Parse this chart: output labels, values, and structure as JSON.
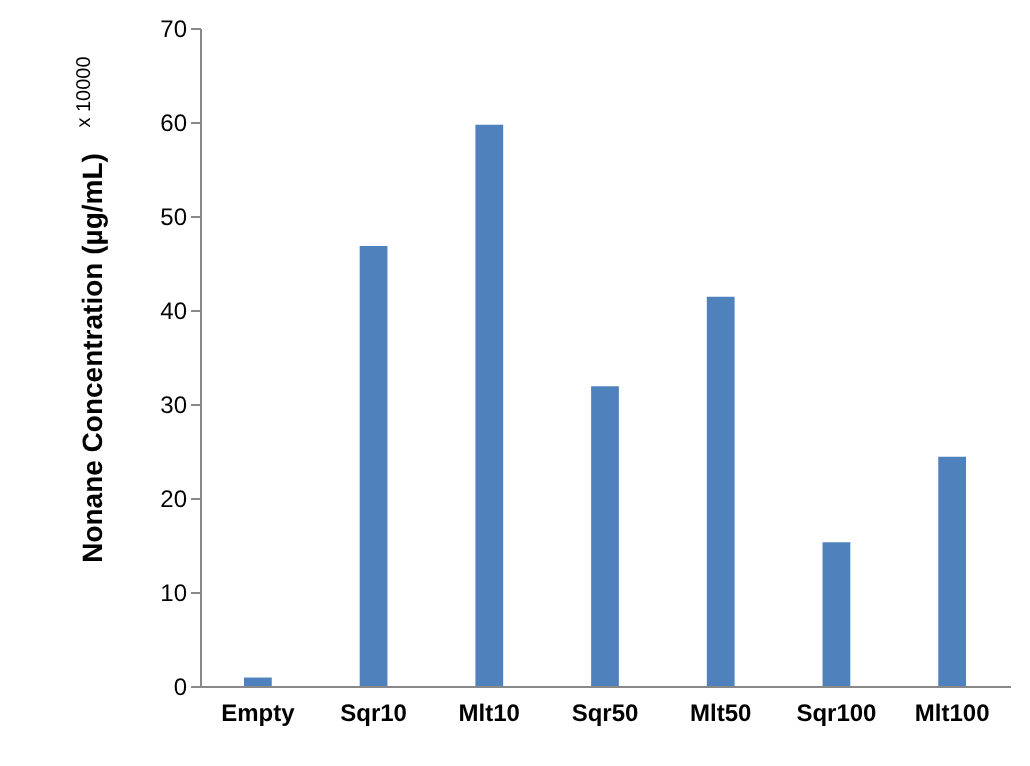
{
  "chart_data": {
    "type": "bar",
    "ylabel": "Nonane Concentration (µg/mL)",
    "annotations": [
      "x 10000"
    ],
    "categories": [
      "Empty",
      "Sqr10",
      "Mlt10",
      "Sqr50",
      "Mlt50",
      "Sqr100",
      "Mlt100"
    ],
    "values": [
      0.9,
      46.8,
      59.7,
      31.9,
      41.4,
      15.3,
      24.4
    ],
    "color": "#4f81bd",
    "ylim": [
      0,
      70
    ],
    "yticks": [
      0,
      10,
      20,
      30,
      40,
      50,
      60,
      70
    ],
    "grid": false
  }
}
